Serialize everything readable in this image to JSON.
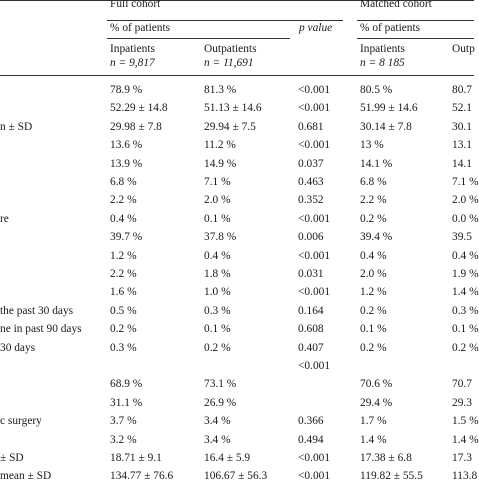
{
  "header": {
    "full_cohort": "Full cohort",
    "matched_cohort": "Matched cohort",
    "pct_patients_full": "% of patients",
    "pct_patients_matched": "% of patients",
    "p_value": "p value",
    "inpatients_full": "Inpatients",
    "inpatients_full_n": "n = 9,817",
    "outpatients_full": "Outpatients",
    "outpatients_full_n": "n = 11,691",
    "inpatients_matched": "Inpatients",
    "inpatients_matched_n": "n = 8 185",
    "outpatients_matched": "Outp"
  },
  "rows": [
    {
      "label": "",
      "in_full": "78.9 %",
      "out_full": "81.3 %",
      "p": "<0.001",
      "in_m": "80.5 %",
      "out_m": "80.7"
    },
    {
      "label": "",
      "in_full": "52.29 ± 14.8",
      "out_full": "51.13 ± 14.6",
      "p": "<0.001",
      "in_m": "51.99 ± 14.6",
      "out_m": "52.1"
    },
    {
      "label": "n ± SD",
      "in_full": "29.98 ± 7.8",
      "out_full": "29.94 ± 7.5",
      "p": "0.681",
      "in_m": "30.14 ± 7.8",
      "out_m": "30.1"
    },
    {
      "label": "",
      "in_full": "13.6 %",
      "out_full": "11.2 %",
      "p": "<0.001",
      "in_m": "13 %",
      "out_m": "13.1"
    },
    {
      "label": "",
      "in_full": "13.9 %",
      "out_full": "14.9 %",
      "p": "0.037",
      "in_m": "14.1 %",
      "out_m": "14.1"
    },
    {
      "label": "",
      "in_full": "6.8 %",
      "out_full": "7.1 %",
      "p": "0.463",
      "in_m": "6.8 %",
      "out_m": "7.1 %"
    },
    {
      "label": "",
      "in_full": "2.2 %",
      "out_full": "2.0 %",
      "p": "0.352",
      "in_m": "2.2 %",
      "out_m": "2.0 %"
    },
    {
      "label": "re",
      "in_full": "0.4 %",
      "out_full": "0.1 %",
      "p": "<0.001",
      "in_m": "0.2 %",
      "out_m": "0.0 %"
    },
    {
      "label": "",
      "in_full": "39.7 %",
      "out_full": "37.8 %",
      "p": "0.006",
      "in_m": "39.4 %",
      "out_m": "39.5"
    },
    {
      "label": "",
      "in_full": "1.2 %",
      "out_full": "0.4 %",
      "p": "<0.001",
      "in_m": "0.4 %",
      "out_m": "0.4 %"
    },
    {
      "label": "",
      "in_full": "2.2 %",
      "out_full": "1.8 %",
      "p": "0.031",
      "in_m": "2.0 %",
      "out_m": "1.9 %"
    },
    {
      "label": "",
      "in_full": "1.6 %",
      "out_full": "1.0 %",
      "p": "<0.001",
      "in_m": "1.2 %",
      "out_m": "1.4 %"
    },
    {
      "label": "the past 30 days",
      "in_full": "0.5 %",
      "out_full": "0.3 %",
      "p": "0.164",
      "in_m": "0.2 %",
      "out_m": "0.3 %"
    },
    {
      "label": "ne in past 90 days",
      "in_full": "0.2 %",
      "out_full": "0.1 %",
      "p": "0.608",
      "in_m": "0.1 %",
      "out_m": "0.1 %"
    },
    {
      "label": "30 days",
      "in_full": "0.3 %",
      "out_full": "0.2 %",
      "p": "0.407",
      "in_m": "0.2 %",
      "out_m": "0.2 %"
    },
    {
      "label": "",
      "in_full": "",
      "out_full": "",
      "p": "<0.001",
      "in_m": "",
      "out_m": ""
    },
    {
      "label": "",
      "in_full": "68.9 %",
      "out_full": "73.1 %",
      "p": "",
      "in_m": "70.6 %",
      "out_m": "70.7"
    },
    {
      "label": "",
      "in_full": "31.1 %",
      "out_full": "26.9 %",
      "p": "",
      "in_m": "29.4 %",
      "out_m": "29.3"
    },
    {
      "label": "c surgery",
      "in_full": "3.7 %",
      "out_full": "3.4 %",
      "p": "0.366",
      "in_m": "1.7 %",
      "out_m": "1.5 %"
    },
    {
      "label": "",
      "in_full": "3.2 %",
      "out_full": "3.4 %",
      "p": "0.494",
      "in_m": "1.4 %",
      "out_m": "1.4 %"
    },
    {
      "label": "± SD",
      "in_full": "18.71 ± 9.1",
      "out_full": "16.4 ± 5.9",
      "p": "<0.001",
      "in_m": "17.38 ± 6.8",
      "out_m": "17.3"
    },
    {
      "label": "mean ± SD",
      "in_full": "134.77 ± 76.6",
      "out_full": "106.67 ± 56.3",
      "p": "<0.001",
      "in_m": "119.82 ± 55.5",
      "out_m": "113.8"
    }
  ]
}
